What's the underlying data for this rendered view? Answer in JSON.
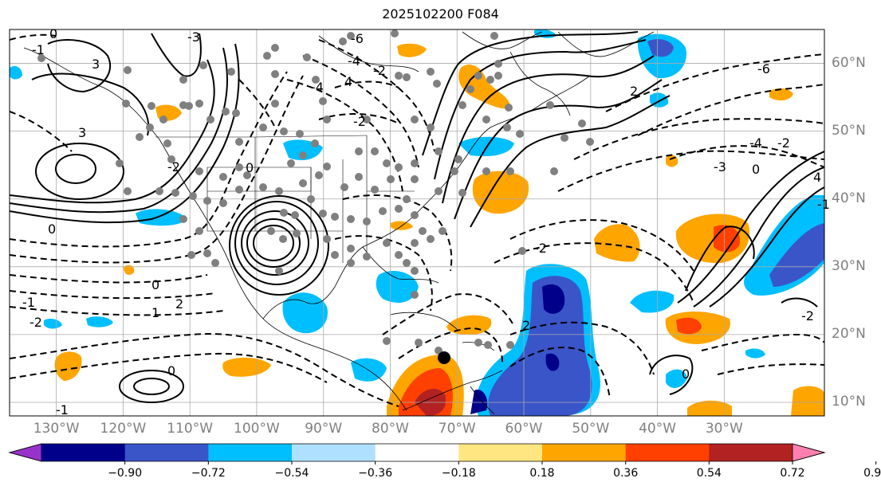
{
  "title": "2025102200 F084",
  "lat_labels": [
    {
      "text": "60°N",
      "lat": 60
    },
    {
      "text": "50°N",
      "lat": 50
    },
    {
      "text": "40°N",
      "lat": 40
    },
    {
      "text": "30°N",
      "lat": 30
    },
    {
      "text": "20°N",
      "lat": 20
    },
    {
      "text": "10°N",
      "lat": 10
    }
  ],
  "lon_labels": [
    {
      "text": "130°W",
      "lon": -130
    },
    {
      "text": "120°W",
      "lon": -120
    },
    {
      "text": "110°W",
      "lon": -110
    },
    {
      "text": "100°W",
      "lon": -100
    },
    {
      "text": "90°W",
      "lon": -90
    },
    {
      "text": "80°W",
      "lon": -80
    },
    {
      "text": "70°W",
      "lon": -70
    },
    {
      "text": "60°W",
      "lon": -60
    },
    {
      "text": "50°W",
      "lon": -50
    },
    {
      "text": "40°W",
      "lon": -40
    },
    {
      "text": "30°W",
      "lon": -30
    }
  ],
  "colorbar": {
    "ticks": [
      "−0.90",
      "−0.72",
      "−0.54",
      "−0.36",
      "−0.18",
      "0.18",
      "0.36",
      "0.54",
      "0.72",
      "0.90"
    ],
    "colors": [
      "#9932cc",
      "#00008b",
      "#3a55c8",
      "#00bfff",
      "#b0e0ff",
      "#ffffff",
      "#ffe680",
      "#ffa500",
      "#ff4000",
      "#b22222",
      "#ff80b0"
    ]
  },
  "contour_labels": [
    "-1",
    "0",
    "3",
    "-3",
    "-6",
    "-4",
    "-2",
    "3",
    "4",
    "-4",
    "-2",
    "0",
    "-2",
    "0",
    "0",
    "2",
    "1",
    "-1",
    "-2",
    "-1",
    "0",
    "2",
    "-6",
    "-4",
    "-3",
    "-2",
    "0",
    "4",
    "-1",
    "-2",
    "2",
    "-2",
    "0"
  ],
  "marker": {
    "label": "storm-center",
    "lon": -75.5,
    "lat": 16.5
  }
}
